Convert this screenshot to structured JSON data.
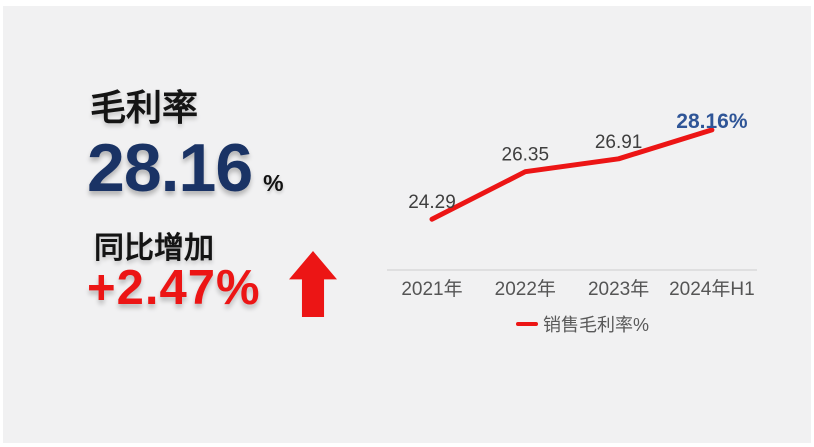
{
  "panel": {
    "title": "毛利率",
    "value": "28.16",
    "value_unit": "%",
    "change_label": "同比增加",
    "change_value": "+2.47%",
    "arrow_icon": "up-arrow"
  },
  "chart_data": {
    "type": "line",
    "title": "",
    "categories": [
      "2021年",
      "2022年",
      "2023年",
      "2024年H1"
    ],
    "series": [
      {
        "name": "销售毛利率%",
        "values": [
          24.29,
          26.35,
          26.91,
          28.16
        ]
      }
    ],
    "point_labels": [
      "24.29",
      "26.35",
      "26.91",
      "28.16%"
    ],
    "ylim": [
      23,
      29.5
    ],
    "grid": false,
    "axis_line": true,
    "legend": [
      "销售毛利率%"
    ],
    "legend_position": "bottom",
    "highlight_last_point": true
  },
  "colors": {
    "background": "#f1f1f2",
    "page_margin": "#ffffff",
    "title_text": "#141414",
    "kpi_value": "#1a3365",
    "accent_red": "#ec1515",
    "point_label": "#3f3f3f",
    "highlight_label": "#2f5597",
    "axis_label": "#555555",
    "axis_line": "#d9d9d9",
    "legend_text": "#595959"
  }
}
